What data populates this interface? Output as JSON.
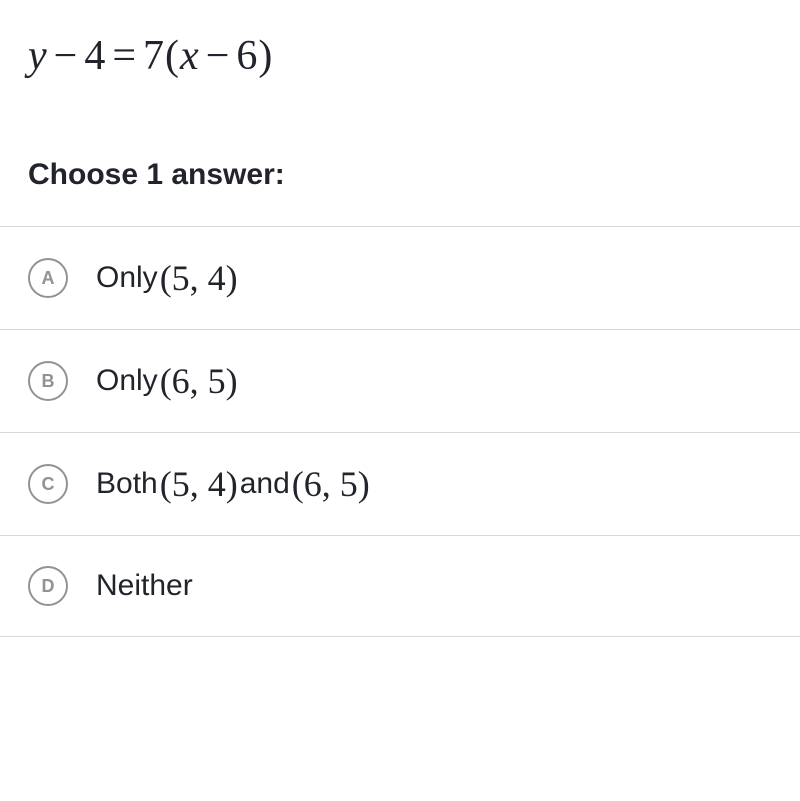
{
  "equation": {
    "lhs_var": "y",
    "minus1": "−",
    "c1": "4",
    "eq": "=",
    "coef": "7",
    "lparen": "(",
    "rhs_var": "x",
    "minus2": "−",
    "c2": "6",
    "rparen": ")"
  },
  "prompt": "Choose 1 answer:",
  "choices": {
    "a": {
      "letter": "A",
      "prefix": "Only ",
      "pair1": "(5, 4)"
    },
    "b": {
      "letter": "B",
      "prefix": "Only ",
      "pair1": "(6, 5)"
    },
    "c": {
      "letter": "C",
      "prefix": "Both ",
      "pair1": "(5, 4)",
      "mid": " and ",
      "pair2": "(6, 5)"
    },
    "d": {
      "letter": "D",
      "text": "Neither"
    }
  },
  "colors": {
    "text": "#21242c",
    "border": "#d6d8da",
    "marker": "#909296",
    "background": "#ffffff"
  }
}
